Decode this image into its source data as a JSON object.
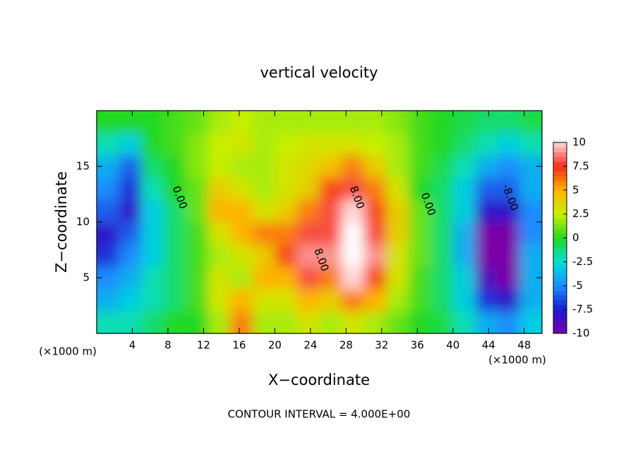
{
  "chart_data": {
    "type": "heatmap",
    "title": "vertical velocity",
    "x_label": "X−coordinate",
    "y_label": "Z−coordinate",
    "x_unit_label": "(×1000 m)",
    "footer": "CONTOUR INTERVAL = 4.000E+00",
    "xlim": [
      0,
      50
    ],
    "ylim": [
      0,
      20
    ],
    "xticks": [
      4,
      8,
      12,
      16,
      20,
      24,
      28,
      32,
      36,
      40,
      44,
      48
    ],
    "yticks": [
      5,
      10,
      15
    ],
    "x": [
      1.25,
      3.75,
      6.25,
      8.75,
      11.25,
      13.75,
      16.25,
      18.75,
      21.25,
      23.75,
      26.25,
      28.75,
      31.25,
      33.75,
      36.25,
      38.75,
      41.25,
      43.75,
      46.25,
      48.75
    ],
    "y": [
      1,
      3,
      5,
      7,
      9,
      11,
      13,
      15,
      17,
      19
    ],
    "z": [
      [
        -2,
        -2,
        -1,
        0,
        0,
        2,
        6,
        2,
        2,
        3,
        2,
        3,
        2,
        1,
        0,
        -0.5,
        -2,
        -4,
        -5,
        -3
      ],
      [
        -4,
        -3,
        -2,
        -1,
        0.5,
        3,
        5,
        3,
        3,
        5,
        4,
        6,
        5,
        2,
        0.5,
        -1,
        -3,
        -7,
        -8,
        -4
      ],
      [
        -5,
        -4,
        -2,
        -1,
        0.5,
        3,
        2,
        5,
        5,
        8,
        6,
        10,
        7,
        3,
        0.5,
        -1,
        -3,
        -9,
        -11,
        -4
      ],
      [
        -7,
        -5,
        -3,
        -1,
        0.5,
        2,
        3,
        4,
        7,
        9,
        9,
        11,
        9,
        3,
        1,
        -1,
        -4,
        -11,
        -10,
        -4
      ],
      [
        -8,
        -6,
        -3,
        -1,
        0.5,
        3,
        5,
        6,
        6,
        8,
        8,
        11,
        8,
        4,
        1,
        -1,
        -4,
        -10,
        -10,
        -5
      ],
      [
        -6,
        -8,
        -3,
        -1,
        1,
        5,
        5,
        3,
        4,
        6,
        8,
        10,
        7,
        4,
        1,
        -1,
        -3,
        -8,
        -8,
        -5
      ],
      [
        -5,
        -7,
        -2,
        0,
        1,
        4,
        3,
        2,
        3,
        4,
        7,
        8,
        6,
        3,
        0,
        -1,
        -3,
        -6,
        -6,
        -4
      ],
      [
        -4,
        -6,
        -1,
        0,
        1.5,
        2.5,
        2,
        2,
        3,
        3.5,
        4.5,
        6,
        4,
        2,
        0.5,
        -0.5,
        -2,
        -4,
        -5,
        -4
      ],
      [
        -2,
        -3,
        0,
        0.5,
        1.5,
        2.5,
        3,
        2,
        2.5,
        3,
        3,
        3,
        2.5,
        2,
        0.5,
        0,
        -1,
        -2,
        -3,
        -2
      ],
      [
        0,
        0,
        0,
        0.5,
        1,
        2,
        2.5,
        2,
        2,
        2,
        2,
        2,
        2,
        1.5,
        0.5,
        0,
        -0.5,
        -1,
        -1,
        -0.5
      ]
    ],
    "colorbar": {
      "range": [
        -10,
        10
      ],
      "ticks": [
        10,
        7.5,
        5,
        2.5,
        0,
        -2.5,
        -5,
        -7.5,
        -10
      ],
      "colors": [
        "#ffd8d8",
        "#f52a1a",
        "#ffb400",
        "#c8f000",
        "#24d824",
        "#00e0d8",
        "#1a8cff",
        "#1a1ad0",
        "#7a00a8"
      ]
    },
    "annotations": [
      {
        "text": "0.00",
        "x": 9.3,
        "y": 12.2
      },
      {
        "text": "0.00",
        "x": 37.2,
        "y": 11.6
      },
      {
        "text": "8.00",
        "x": 29.2,
        "y": 12.2
      },
      {
        "text": "8.00",
        "x": 25.2,
        "y": 6.6
      },
      {
        "text": "-8.00",
        "x": 46.4,
        "y": 12.2
      }
    ]
  }
}
